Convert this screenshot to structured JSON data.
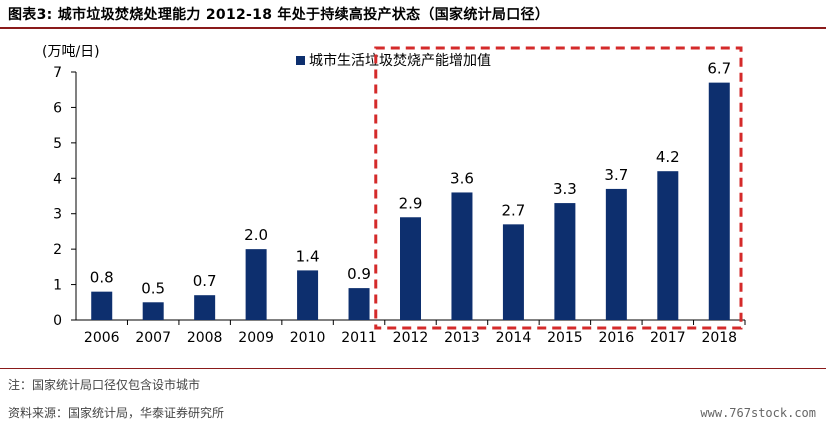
{
  "title": "图表3:   城市垃圾焚烧处理能力 2012-18 年处于持续高投产状态（国家统计局口径）",
  "footer": {
    "note": "注：国家统计局口径仅包含设市城市",
    "source": "资料来源：国家统计局，华泰证券研究所",
    "watermark": "www.767stock.com"
  },
  "colors": {
    "bar": "#0d2f6e",
    "highlight_box": "#d42a2a",
    "rule": "#8a1a1a"
  },
  "chart_data": {
    "type": "bar",
    "categories": [
      "2006",
      "2007",
      "2008",
      "2009",
      "2010",
      "2011",
      "2012",
      "2013",
      "2014",
      "2015",
      "2016",
      "2017",
      "2018"
    ],
    "series": [
      {
        "name": "城市生活垃圾焚烧产能增加值",
        "values": [
          0.8,
          0.5,
          0.7,
          2.0,
          1.4,
          0.9,
          2.9,
          3.6,
          2.7,
          3.3,
          3.7,
          4.2,
          6.7
        ],
        "labels": [
          "0.8",
          "0.5",
          "0.7",
          "2.0",
          "1.4",
          "0.9",
          "2.9",
          "3.6",
          "2.7",
          "3.3",
          "3.7",
          "4.2",
          "6.7"
        ]
      }
    ],
    "unit_label": "(万吨/日)",
    "ylim": [
      0,
      7
    ],
    "yticks": [
      "0",
      "1",
      "2",
      "3",
      "4",
      "5",
      "6",
      "7"
    ],
    "legend_position": "top-center",
    "grid": false,
    "highlight_range": [
      "2012",
      "2018"
    ]
  }
}
